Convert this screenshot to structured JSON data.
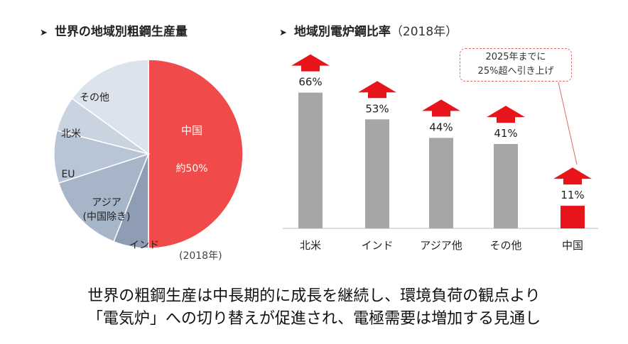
{
  "pie_heading": "世界の地域別粗鋼生産量",
  "bar_heading": {
    "title": "地域別電炉鋼比率",
    "year": "（2018年）"
  },
  "pie_year": "(2018年)",
  "callout": {
    "line1": "2025年までに",
    "line2": "25%超へ引き上げ"
  },
  "footer": {
    "line1": "世界の粗鋼生産は中長期的に成長を継続し、環境負荷の観点より",
    "line2": "「電気炉」への切り替えが促進され、電極需要は増加する見通し"
  },
  "colors": {
    "highlight": "#f04a4a",
    "bar_gray": "#a6a6a6",
    "arrow_red": "#e8141b"
  },
  "chart_data": [
    {
      "type": "pie",
      "title": "世界の地域別粗鋼生産量",
      "slices": [
        {
          "label": "中国",
          "value_label": "約50%",
          "value": 50,
          "color": "#f04a4a"
        },
        {
          "label": "インド",
          "value": 6,
          "color": "#8e9db3"
        },
        {
          "label": "アジア\n(中国除き)",
          "value": 14,
          "color": "#a7b5c8"
        },
        {
          "label": "EU",
          "value": 9,
          "color": "#b8c5d6"
        },
        {
          "label": "北米",
          "value": 6,
          "color": "#cad4e1"
        },
        {
          "label": "その他",
          "value": 15,
          "color": "#dde3ec"
        }
      ]
    },
    {
      "type": "bar",
      "title": "地域別電炉鋼比率（2018年）",
      "categories": [
        "北米",
        "インド",
        "アジア他",
        "その他",
        "中国"
      ],
      "values": [
        66,
        53,
        44,
        41,
        11
      ],
      "value_labels": [
        "66%",
        "53%",
        "44%",
        "41%",
        "11%"
      ],
      "highlight_index": 4
    }
  ]
}
